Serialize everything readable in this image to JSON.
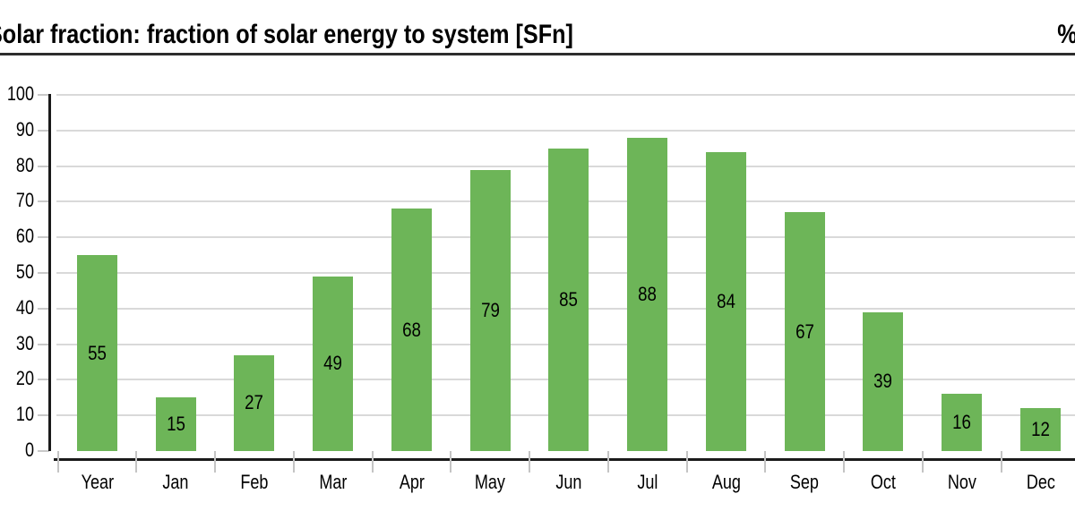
{
  "header": {
    "title": "Solar fraction: fraction of solar energy to system [SFn]",
    "unit_label": "%"
  },
  "chart_data": {
    "type": "bar",
    "title": "Solar fraction: fraction of solar energy to system [SFn]",
    "ylabel": "%",
    "xlabel": "",
    "categories": [
      "Year",
      "Jan",
      "Feb",
      "Mar",
      "Apr",
      "May",
      "Jun",
      "Jul",
      "Aug",
      "Sep",
      "Oct",
      "Nov",
      "Dec"
    ],
    "values": [
      55,
      15,
      27,
      49,
      68,
      79,
      85,
      88,
      84,
      67,
      39,
      16,
      12
    ],
    "ylim": [
      0,
      100
    ],
    "ytick_interval": 10,
    "grid": true,
    "legend_position": "none",
    "value_label_position": "center-of-bar"
  },
  "colors": {
    "bar": "#6DB558",
    "gridline": "#D9D9D9",
    "tick": "#C9C9C9",
    "divider": "#C4C4C4",
    "axis": "#1A1A1A",
    "title_rule": "#2D2D2D",
    "text": "#000000",
    "background": "#FFFFFF"
  }
}
